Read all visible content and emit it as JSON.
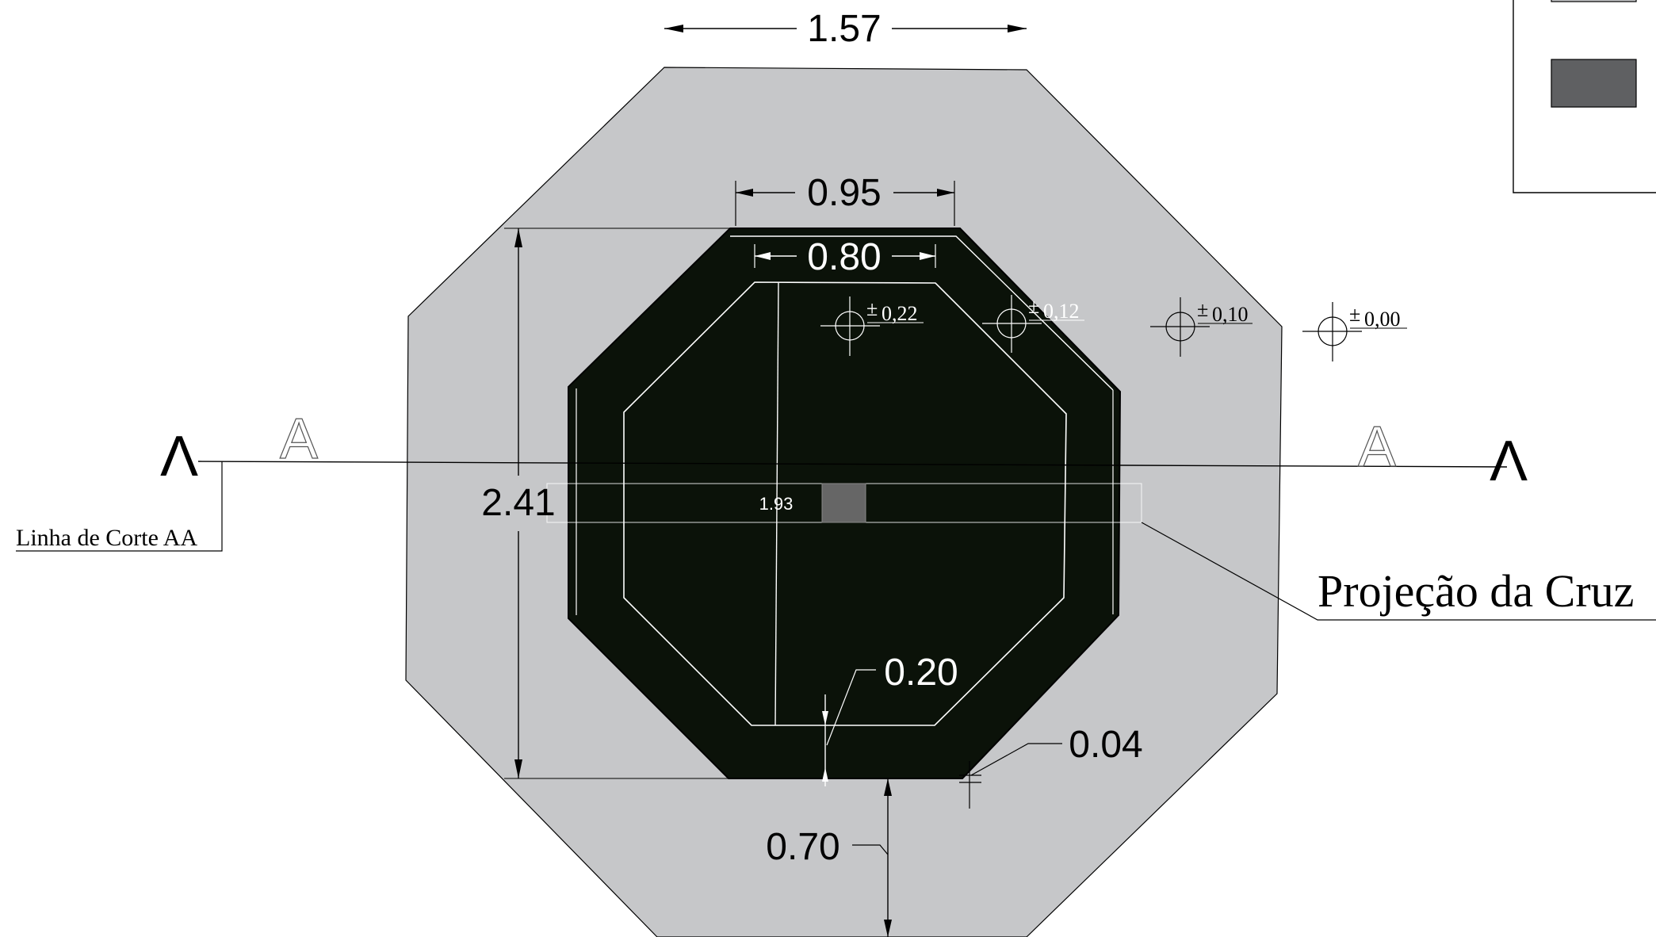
{
  "dimensions": {
    "top_width": "1.57",
    "outer_width": "0.95",
    "inner_width": "0.80",
    "height": "2.41",
    "cross_length": "1.93",
    "wall_thickness": "0.20",
    "gap": "0.04",
    "bottom_depth": "0.70"
  },
  "levels": [
    {
      "sign": "±",
      "value": "0,22"
    },
    {
      "sign": "±",
      "value": "0,12"
    },
    {
      "sign": "±",
      "value": "0,10"
    },
    {
      "sign": "±",
      "value": "0,00"
    }
  ],
  "section": {
    "arrow_glyph": "Λ",
    "letter": "A",
    "cut_line_label": "Linha de Corte AA"
  },
  "callouts": {
    "cross_projection": "Projeção da Cruz"
  },
  "colors": {
    "ground": "#c6c7c9",
    "pit": "#0b1209",
    "cross_fill": "#666666",
    "legend_swatch": "#5f6062"
  }
}
